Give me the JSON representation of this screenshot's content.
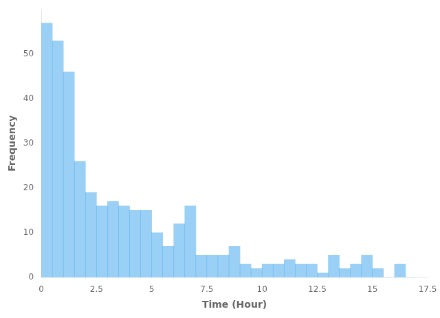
{
  "chart_data": {
    "type": "histogram",
    "bins": [
      0,
      0.5,
      1,
      1.5,
      2,
      2.5,
      3,
      3.5,
      4,
      4.5,
      5,
      5.5,
      6,
      6.5,
      7,
      7.5,
      8,
      8.5,
      9,
      9.5,
      10,
      10.5,
      11,
      11.5,
      12,
      12.5,
      13,
      13.5,
      14,
      14.5,
      15,
      15.5,
      16,
      16.5,
      17
    ],
    "values": [
      57,
      53,
      46,
      26,
      19,
      16,
      17,
      16,
      15,
      15,
      10,
      7,
      12,
      16,
      5,
      5,
      5,
      7,
      3,
      2,
      3,
      3,
      4,
      3,
      3,
      1,
      5,
      2,
      3,
      5,
      2,
      0,
      3,
      0
    ],
    "xlabel": "Time (Hour)",
    "ylabel": "Frequency",
    "xlim": [
      0,
      17.5
    ],
    "ylim": [
      0,
      60
    ],
    "xticks": [
      0,
      2.5,
      5,
      7.5,
      10,
      12.5,
      15,
      17.5
    ],
    "yticks": [
      0,
      10,
      20,
      30,
      40,
      50
    ],
    "grid": false
  }
}
